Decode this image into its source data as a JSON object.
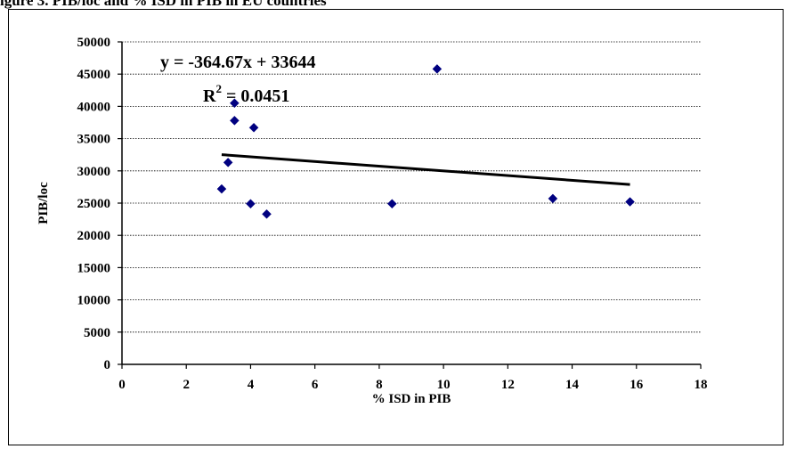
{
  "header_fragment": "igure 3. PIB/loc and % ISD in PIB in EU countries",
  "chart_data": {
    "type": "scatter",
    "title": "",
    "xlabel": "% ISD in PIB",
    "ylabel": "PIB/loc",
    "xlim": [
      0,
      18
    ],
    "ylim": [
      0,
      50000
    ],
    "x_ticks": [
      "0",
      "2",
      "4",
      "6",
      "8",
      "10",
      "12",
      "14",
      "16",
      "18"
    ],
    "y_ticks": [
      "0",
      "5000",
      "10000",
      "15000",
      "20000",
      "25000",
      "30000",
      "35000",
      "40000",
      "45000",
      "50000"
    ],
    "grid": true,
    "legend": "none",
    "marker_color": "#000080",
    "trendline_color": "#000000",
    "series": [
      {
        "points": [
          {
            "x": 3.1,
            "y": 27200
          },
          {
            "x": 3.3,
            "y": 31300
          },
          {
            "x": 3.5,
            "y": 40500
          },
          {
            "x": 3.5,
            "y": 37800
          },
          {
            "x": 4.1,
            "y": 36700
          },
          {
            "x": 4.0,
            "y": 24900
          },
          {
            "x": 4.5,
            "y": 23300
          },
          {
            "x": 8.4,
            "y": 24900
          },
          {
            "x": 9.8,
            "y": 45800
          },
          {
            "x": 13.4,
            "y": 25700
          },
          {
            "x": 15.8,
            "y": 25200
          }
        ]
      }
    ],
    "trendline": {
      "slope": -364.67,
      "intercept": 33644,
      "x_range": [
        3.1,
        15.8
      ],
      "equation_label": "y = -364.67x + 33644",
      "r2_prefix": "R",
      "r2_sup": "2",
      "r2_value": " = 0.0451"
    }
  }
}
